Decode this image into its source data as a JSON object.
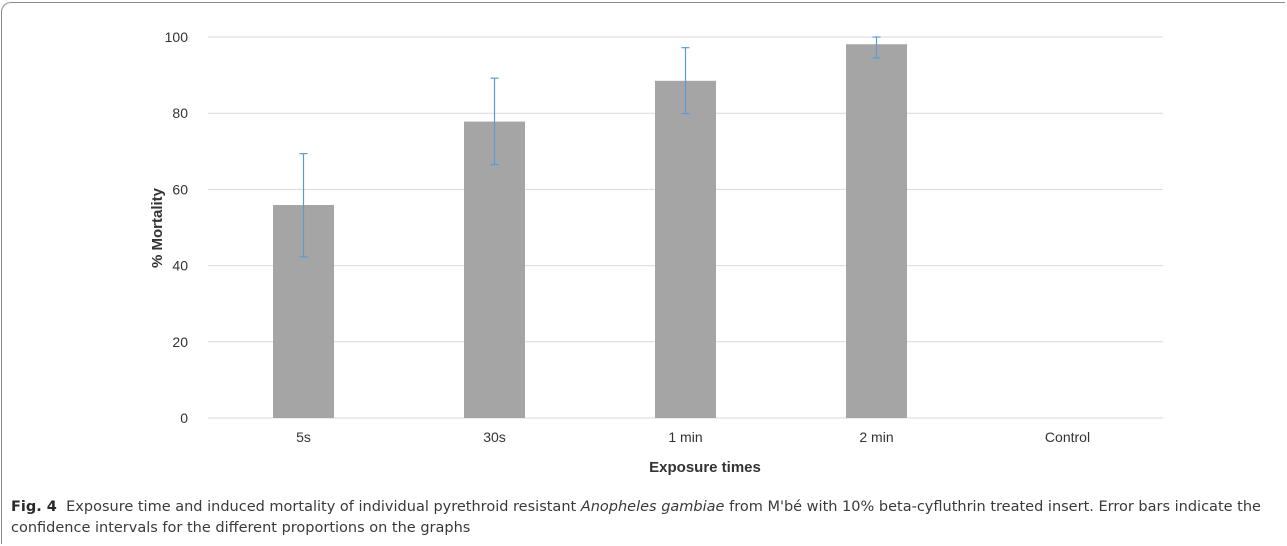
{
  "chart_data": {
    "type": "bar",
    "categories": [
      "5s",
      "30s",
      "1 min",
      "2 min",
      "Control"
    ],
    "values": [
      55.9,
      77.8,
      88.5,
      98.1,
      0
    ],
    "error_bars": [
      {
        "lower": 42.3,
        "upper": 69.4
      },
      {
        "lower": 66.5,
        "upper": 89.2
      },
      {
        "lower": 79.9,
        "upper": 97.2
      },
      {
        "lower": 94.5,
        "upper": 100
      }
    ],
    "xlabel": "Exposure times",
    "ylabel": "% Mortality",
    "ylim": [
      0,
      100
    ],
    "yticks": [
      "0",
      "20",
      "40",
      "60",
      "80",
      "100"
    ],
    "grid": true,
    "colors": {
      "bar": "#a5a5a5",
      "error_bar": "#5b9bd5",
      "grid": "#d9d9d9"
    }
  },
  "caption": {
    "label": "Fig. 4",
    "text_before": "Exposure time and induced mortality of individual pyrethroid resistant ",
    "species": "Anopheles gambiae",
    "text_after": " from M'bé with 10% beta-cyfluthrin treated insert. Error bars indicate the confidence intervals for the different proportions on the graphs"
  }
}
